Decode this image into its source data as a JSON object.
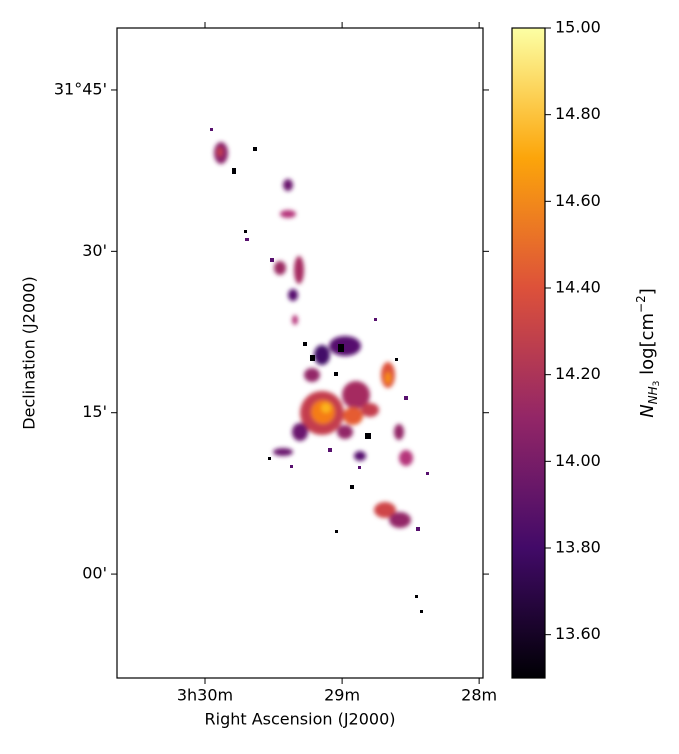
{
  "chart_data": {
    "type": "image",
    "x_label": "Right Ascension (J2000)",
    "y_label": "Declination (J2000)",
    "xlim": [
      3.5107,
      3.4662
    ],
    "ylim": [
      30.839,
      31.846
    ],
    "xticks": [
      {
        "value": 3.5,
        "label": "3h30m"
      },
      {
        "value": 3.48333,
        "label": "29m"
      },
      {
        "value": 3.46667,
        "label": "28m"
      }
    ],
    "yticks": [
      {
        "value": 31.75,
        "label": "31°45'"
      },
      {
        "value": 31.5,
        "label": "30'"
      },
      {
        "value": 31.25,
        "label": "15'"
      },
      {
        "value": 31.0,
        "label": "00'"
      }
    ],
    "colorbar": {
      "clim": [
        13.5,
        15.0
      ],
      "ticks": [
        {
          "value": 13.6,
          "label": "13.60"
        },
        {
          "value": 13.8,
          "label": "13.80"
        },
        {
          "value": 14.0,
          "label": "14.00"
        },
        {
          "value": 14.2,
          "label": "14.20"
        },
        {
          "value": 14.4,
          "label": "14.40"
        },
        {
          "value": 14.6,
          "label": "14.60"
        },
        {
          "value": 14.8,
          "label": "14.80"
        },
        {
          "value": 15.0,
          "label": "15.00"
        }
      ],
      "colormap": [
        "#000004",
        "#420a68",
        "#932667",
        "#dd513a",
        "#fca50a",
        "#fcffa4"
      ],
      "label": {
        "symbol": "N",
        "subscript": "NH",
        "subsubscript": "3",
        "unit": " log[cm",
        "exponent": "−2",
        "close": "]"
      }
    }
  }
}
